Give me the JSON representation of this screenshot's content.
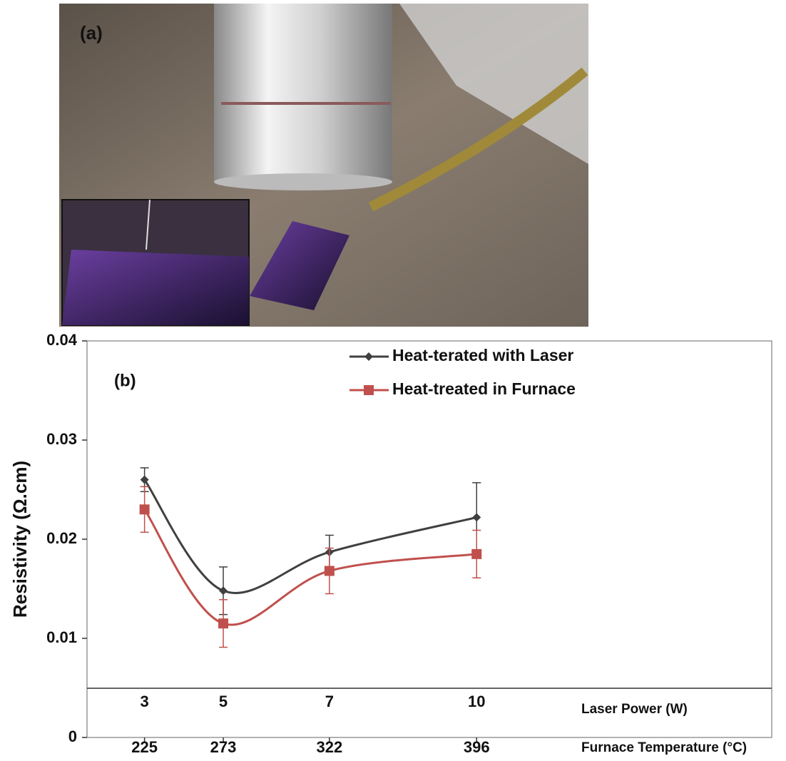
{
  "photo_panel": {
    "label": "(a)"
  },
  "chart_data": {
    "type": "line",
    "panel_label": "(b)",
    "ylabel": "Resistivity (Ω.cm)",
    "xlabel": "Laser Power (W)",
    "xlabel2": "Furnace Temperature (°C)",
    "categories": [
      "3",
      "5",
      "7",
      "10"
    ],
    "categories2": [
      "225",
      "273",
      "322",
      "396"
    ],
    "ylim": [
      0,
      0.04
    ],
    "yticks": [
      0,
      0.01,
      0.02,
      0.03,
      0.04
    ],
    "legend": "upper right",
    "smooth": true,
    "series": [
      {
        "name": "Heat-terated with Laser",
        "color": "#404040",
        "marker": "diamond",
        "values": [
          0.026,
          0.0148,
          0.0187,
          0.0222
        ],
        "errors": [
          0.0012,
          0.0024,
          0.0017,
          0.0035
        ]
      },
      {
        "name": "Heat-treated in Furnace",
        "color": "#c0504d",
        "marker": "square",
        "values": [
          0.023,
          0.0115,
          0.0168,
          0.0185
        ],
        "errors": [
          0.0023,
          0.0024,
          0.0023,
          0.0024
        ]
      }
    ]
  }
}
